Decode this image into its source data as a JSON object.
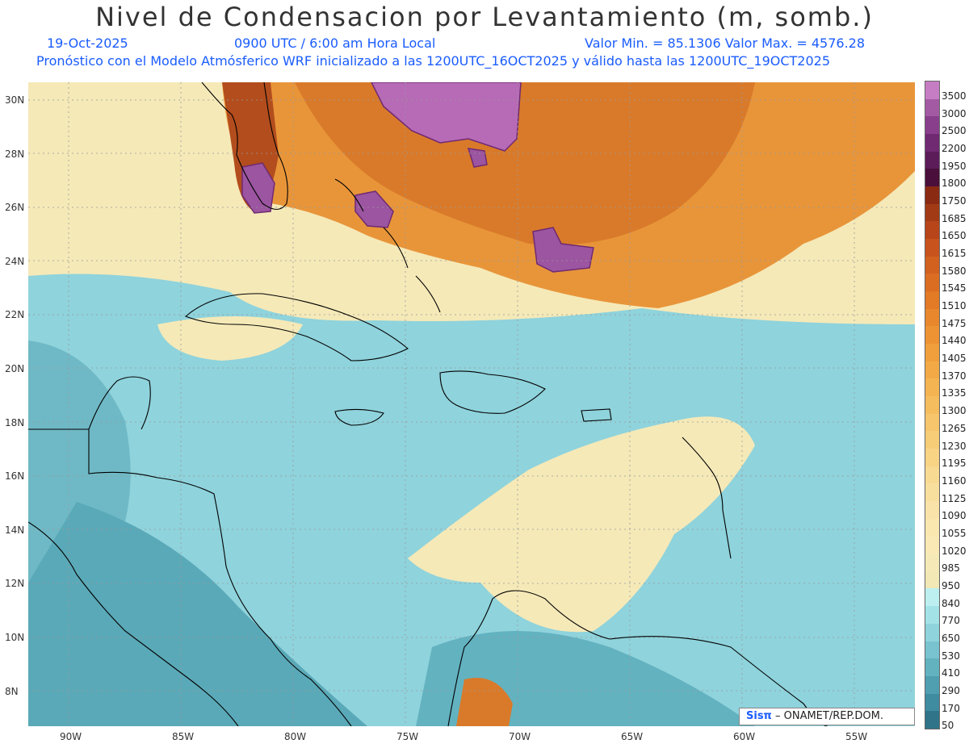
{
  "header": {
    "title": "Nivel de Condensacion por Levantamiento (m, somb.)",
    "date": "19-Oct-2025",
    "time": "0900 UTC / 6:00 am Hora Local",
    "minmax": "Valor Min. = 85.1306   Valor Max. = 4576.28",
    "forecast": "Pronóstico con el Modelo Atmósferico WRF inicializado a las 1200UTC_16OCT2025 y válido hasta las  1200UTC_19OCT2025"
  },
  "lat_labels": [
    "30N",
    "28N",
    "26N",
    "24N",
    "22N",
    "20N",
    "18N",
    "16N",
    "14N",
    "12N",
    "10N",
    "8N"
  ],
  "lon_labels": [
    "90W",
    "85W",
    "80W",
    "75W",
    "70W",
    "65W",
    "60W",
    "55W"
  ],
  "colorbar": {
    "labels": [
      "3500",
      "3000",
      "2500",
      "2200",
      "1950",
      "1800",
      "1750",
      "1685",
      "1650",
      "1615",
      "1580",
      "1545",
      "1510",
      "1475",
      "1440",
      "1405",
      "1370",
      "1335",
      "1300",
      "1265",
      "1230",
      "1195",
      "1160",
      "1125",
      "1090",
      "1055",
      "1020",
      "985",
      "950",
      "840",
      "770",
      "650",
      "530",
      "410",
      "290",
      "170",
      "50"
    ],
    "colors": [
      "#c77dc4",
      "#a45aa2",
      "#8a3f8c",
      "#6f2a72",
      "#5c1c5a",
      "#4a0f3a",
      "#8a2a12",
      "#a23a15",
      "#b8451a",
      "#c8531c",
      "#d2601f",
      "#db6d22",
      "#e27a26",
      "#e8872c",
      "#ed9333",
      "#f09f3c",
      "#f3aa46",
      "#f5b452",
      "#f6bd5e",
      "#f7c56b",
      "#f8cd78",
      "#f9d485",
      "#f9da92",
      "#f9df9e",
      "#fae3a8",
      "#fae7b0",
      "#fbe9b5",
      "#f5e9b8",
      "#f1e8b5",
      "#bdeff0",
      "#a3e3e8",
      "#8fd3dc",
      "#78c3cf",
      "#63b2c0",
      "#509fb0",
      "#3f8ba0",
      "#2f7488"
    ]
  },
  "credit": {
    "logo": "Sisπ",
    "text": " – ONAMET/REP.DOM."
  }
}
